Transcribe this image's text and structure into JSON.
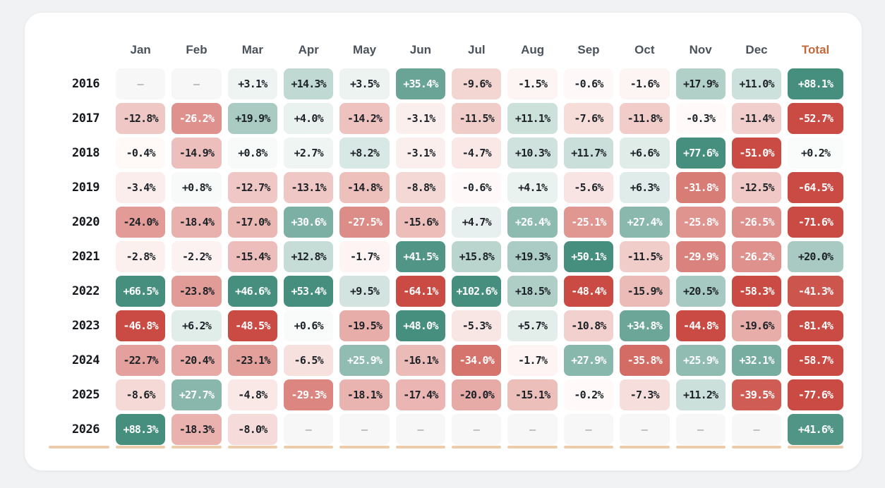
{
  "page": {
    "background": "#f1f2f4",
    "card_background": "#ffffff"
  },
  "colors": {
    "positive_deep": "#468f7e",
    "positive_faint": "#fafcfb",
    "negative_deep": "#c94b43",
    "negative_faint": "#fffbfa",
    "empty_cell_bg": "#f7f7f8",
    "empty_dash": "#8a9096",
    "value_text_dark": "#1c2227",
    "value_text_light": "#ffffff",
    "month_header_text": "#4a525b",
    "total_header_text": "#c06a3c",
    "year_text": "#16191d",
    "current_row_underline": "#ecccaa",
    "scale_cap_abs_percent": 44,
    "white_text_min_abs_percent": 24.5
  },
  "chart_data": {
    "type": "heatmap",
    "title": "",
    "columns": [
      "Jan",
      "Feb",
      "Mar",
      "Apr",
      "May",
      "Jun",
      "Jul",
      "Aug",
      "Sep",
      "Oct",
      "Nov",
      "Dec"
    ],
    "total_column_label": "Total",
    "value_unit": "percent",
    "value_format": "signed_one_decimal_percent",
    "empty_placeholder": "–",
    "highlighted_row_year": "2026",
    "rows": [
      {
        "year": "2016",
        "monthly": [
          null,
          null,
          3.1,
          14.3,
          3.5,
          35.4,
          -9.6,
          -1.5,
          -0.6,
          -1.6,
          17.9,
          11.0
        ],
        "total": 88.1
      },
      {
        "year": "2017",
        "monthly": [
          -12.8,
          -26.2,
          19.9,
          4.0,
          -14.2,
          -3.1,
          -11.5,
          11.1,
          -7.6,
          -11.8,
          -0.3,
          -11.4
        ],
        "total": -52.7
      },
      {
        "year": "2018",
        "monthly": [
          -0.4,
          -14.9,
          0.8,
          2.7,
          8.2,
          -3.1,
          -4.7,
          10.3,
          11.7,
          6.6,
          77.6,
          -51.0
        ],
        "total": 0.2
      },
      {
        "year": "2019",
        "monthly": [
          -3.4,
          0.8,
          -12.7,
          -13.1,
          -14.8,
          -8.8,
          -0.6,
          4.1,
          -5.6,
          6.3,
          -31.8,
          -12.5
        ],
        "total": -64.5
      },
      {
        "year": "2020",
        "monthly": [
          -24.0,
          -18.4,
          -17.0,
          30.6,
          -27.5,
          -15.6,
          4.7,
          26.4,
          -25.1,
          27.4,
          -25.8,
          -26.5
        ],
        "total": -71.6
      },
      {
        "year": "2021",
        "monthly": [
          -2.8,
          -2.2,
          -15.4,
          12.8,
          -1.7,
          41.5,
          15.8,
          19.3,
          50.1,
          -11.5,
          -29.9,
          -26.2
        ],
        "total": 20.0
      },
      {
        "year": "2022",
        "monthly": [
          66.5,
          -23.8,
          46.6,
          53.4,
          9.5,
          -64.1,
          102.6,
          18.5,
          -48.4,
          -15.9,
          20.5,
          -58.3
        ],
        "total": -41.3
      },
      {
        "year": "2023",
        "monthly": [
          -46.8,
          6.2,
          -48.5,
          0.6,
          -19.5,
          48.0,
          -5.3,
          5.7,
          -10.8,
          34.8,
          -44.8,
          -19.6
        ],
        "total": -81.4
      },
      {
        "year": "2024",
        "monthly": [
          -22.7,
          -20.4,
          -23.1,
          -6.5,
          25.9,
          -16.1,
          -34.0,
          -1.7,
          27.9,
          -35.8,
          25.9,
          32.1
        ],
        "total": -58.7
      },
      {
        "year": "2025",
        "monthly": [
          -8.6,
          27.7,
          -4.8,
          -29.3,
          -18.1,
          -17.4,
          -20.0,
          -15.1,
          -0.2,
          -7.3,
          11.2,
          -39.5
        ],
        "total": -77.6
      },
      {
        "year": "2026",
        "monthly": [
          88.3,
          -18.3,
          -8.0,
          null,
          null,
          null,
          null,
          null,
          null,
          null,
          null,
          null
        ],
        "total": 41.6
      }
    ]
  }
}
